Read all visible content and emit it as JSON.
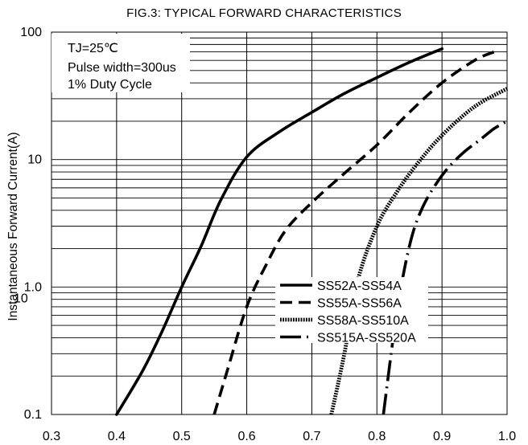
{
  "chart_data": {
    "type": "line",
    "title": "FIG.3: TYPICAL FORWARD CHARACTERISTICS",
    "ylabel": "Instantaneous Forward Current(A)",
    "xlabel": "",
    "xlim": [
      0.3,
      1.0
    ],
    "ylim": [
      0.1,
      100
    ],
    "yscale": "log",
    "grid": true,
    "x_tick_labels": [
      "0.3",
      "0.4",
      "0.5",
      "0.6",
      "0.7",
      "0.8",
      "0.9",
      "1.0"
    ],
    "y_tick_labels": [
      "0.1",
      "1.0",
      "10",
      "100"
    ],
    "y_tick_extra": "10",
    "conditions": [
      "TJ=25℃",
      "Pulse width=300us",
      "1% Duty Cycle"
    ],
    "legend_position": "lower-right",
    "series": [
      {
        "name": "SS52A-SS54A",
        "style": "solid",
        "x": [
          0.4,
          0.44,
          0.47,
          0.5,
          0.53,
          0.56,
          0.6,
          0.65,
          0.7,
          0.75,
          0.8,
          0.85,
          0.9
        ],
        "y": [
          0.1,
          0.22,
          0.45,
          1.0,
          2.1,
          4.8,
          10.5,
          16.5,
          23.5,
          33.0,
          44.0,
          58.0,
          74.0
        ]
      },
      {
        "name": "SS55A-SS56A",
        "style": "dash",
        "x": [
          0.55,
          0.57,
          0.6,
          0.63,
          0.66,
          0.7,
          0.75,
          0.8,
          0.85,
          0.9,
          0.95,
          0.98
        ],
        "y": [
          0.1,
          0.22,
          0.7,
          1.5,
          2.8,
          4.6,
          7.8,
          13.0,
          23.5,
          40.0,
          60.0,
          70.0
        ]
      },
      {
        "name": "SS58A-SS510A",
        "style": "dotted-heavy",
        "x": [
          0.73,
          0.75,
          0.77,
          0.8,
          0.83,
          0.86,
          0.9,
          0.95,
          1.0
        ],
        "y": [
          0.1,
          0.3,
          1.1,
          3.0,
          5.5,
          9.0,
          15.5,
          26.0,
          36.0
        ]
      },
      {
        "name": "SS515A-SS520A",
        "style": "long-dash",
        "x": [
          0.81,
          0.83,
          0.85,
          0.87,
          0.9,
          0.93,
          0.96,
          0.98,
          1.0
        ],
        "y": [
          0.1,
          0.6,
          2.1,
          4.2,
          7.5,
          11.0,
          14.5,
          17.5,
          20.0
        ]
      }
    ]
  }
}
